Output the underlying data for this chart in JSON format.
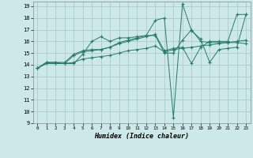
{
  "xlabel": "Humidex (Indice chaleur)",
  "bg_color": "#cce8e8",
  "grid_color": "#aacccc",
  "line_color": "#2a7a6a",
  "xlim": [
    -0.5,
    23.5
  ],
  "ylim": [
    9,
    19.4
  ],
  "xticks": [
    0,
    1,
    2,
    3,
    4,
    5,
    6,
    7,
    8,
    9,
    10,
    11,
    12,
    13,
    14,
    15,
    16,
    17,
    18,
    19,
    20,
    21,
    22,
    23
  ],
  "yticks": [
    9,
    10,
    11,
    12,
    13,
    14,
    15,
    16,
    17,
    18,
    19
  ],
  "series": [
    {
      "x": [
        0,
        1,
        2,
        3,
        4,
        5,
        6,
        7,
        8,
        9,
        10,
        11,
        12,
        13,
        14,
        15,
        16,
        17,
        18,
        19,
        20,
        21,
        22,
        23
      ],
      "y": [
        13.7,
        14.2,
        14.2,
        14.1,
        14.1,
        14.9,
        16.0,
        16.4,
        16.0,
        16.3,
        16.3,
        16.4,
        16.5,
        16.5,
        15.0,
        15.0,
        16.1,
        17.0,
        16.0,
        15.9,
        15.9,
        15.9,
        15.9,
        15.8
      ]
    },
    {
      "x": [
        0,
        1,
        2,
        3,
        4,
        5,
        6,
        7,
        8,
        9,
        10,
        11,
        12,
        13,
        14,
        15,
        16,
        17,
        18,
        19,
        20,
        21,
        22,
        23
      ],
      "y": [
        13.7,
        14.1,
        14.1,
        14.1,
        14.8,
        15.1,
        15.2,
        15.3,
        15.5,
        15.8,
        16.0,
        16.2,
        16.4,
        16.6,
        15.2,
        15.4,
        15.5,
        14.1,
        15.5,
        16.0,
        16.0,
        16.0,
        18.3,
        18.3
      ]
    },
    {
      "x": [
        0,
        1,
        2,
        3,
        4,
        5,
        6,
        7,
        8,
        9,
        10,
        11,
        12,
        13,
        14,
        15,
        16,
        17,
        18,
        19,
        20,
        21,
        22,
        23
      ],
      "y": [
        13.7,
        14.2,
        14.2,
        14.2,
        14.9,
        15.2,
        15.3,
        15.3,
        15.5,
        15.9,
        16.1,
        16.3,
        16.5,
        17.8,
        18.0,
        9.5,
        19.2,
        16.9,
        16.2,
        14.2,
        15.3,
        15.4,
        15.5,
        18.3
      ]
    },
    {
      "x": [
        0,
        1,
        2,
        3,
        4,
        5,
        6,
        7,
        8,
        9,
        10,
        11,
        12,
        13,
        14,
        15,
        16,
        17,
        18,
        19,
        20,
        21,
        22,
        23
      ],
      "y": [
        13.7,
        14.2,
        14.1,
        14.1,
        14.2,
        14.5,
        14.6,
        14.7,
        14.8,
        15.0,
        15.2,
        15.3,
        15.4,
        15.6,
        15.1,
        15.3,
        15.4,
        15.5,
        15.6,
        15.7,
        15.8,
        15.9,
        16.0,
        16.1
      ]
    }
  ]
}
